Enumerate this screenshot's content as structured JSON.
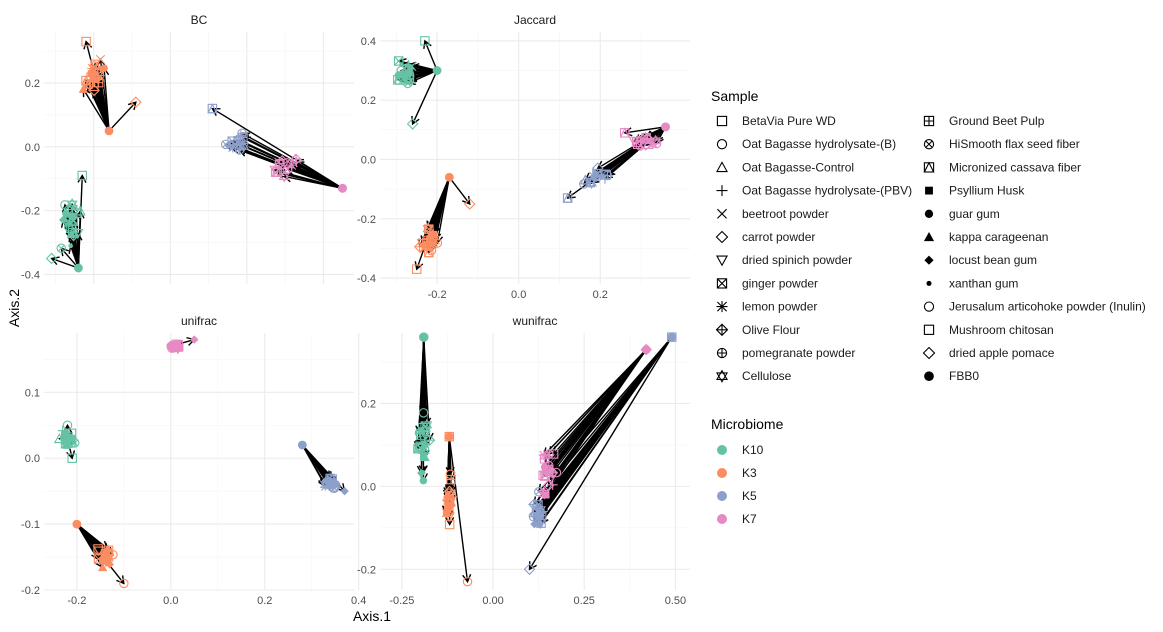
{
  "figure": {
    "xlabel": "Axis.1",
    "ylabel": "Axis.2"
  },
  "legend": {
    "sample_title": "Sample",
    "samples": [
      {
        "label": "BetaVia Pure WD",
        "shape": "square-open"
      },
      {
        "label": "Oat Bagasse hydrolysate-(B)",
        "shape": "circle-open"
      },
      {
        "label": "Oat Bagasse-Control",
        "shape": "triangle-open"
      },
      {
        "label": "Oat Bagasse hydrolysate-(PBV)",
        "shape": "plus"
      },
      {
        "label": "beetroot powder",
        "shape": "cross"
      },
      {
        "label": "carrot powder",
        "shape": "diamond-open"
      },
      {
        "label": "dried spinich powder",
        "shape": "triangle-down-open"
      },
      {
        "label": "ginger powder",
        "shape": "square-cross"
      },
      {
        "label": "lemon powder",
        "shape": "asterisk"
      },
      {
        "label": "Olive Flour",
        "shape": "diamond-plus"
      },
      {
        "label": "pomegranate powder",
        "shape": "circle-plus"
      },
      {
        "label": "Cellulose",
        "shape": "star-of-david"
      },
      {
        "label": "Ground Beet Pulp",
        "shape": "square-plus"
      },
      {
        "label": "HiSmooth flax seed fiber",
        "shape": "circle-cross"
      },
      {
        "label": "Micronized cassava fiber",
        "shape": "square-triangle"
      },
      {
        "label": "Psyllium Husk",
        "shape": "square-filled"
      },
      {
        "label": "guar gum",
        "shape": "circle-filled"
      },
      {
        "label": "kappa carageenan",
        "shape": "triangle-filled"
      },
      {
        "label": "locust bean gum",
        "shape": "diamond-filled"
      },
      {
        "label": "xanthan gum",
        "shape": "dot-small"
      },
      {
        "label": "Jerusalum articohoke powder (Inulin)",
        "shape": "circle-open"
      },
      {
        "label": "Mushroom chitosan",
        "shape": "square-open"
      },
      {
        "label": "dried apple pomace",
        "shape": "diamond-open"
      },
      {
        "label": "FBB0",
        "shape": "circle-filled-large"
      }
    ],
    "microbiome_title": "Microbiome",
    "microbiomes": [
      {
        "label": "K10",
        "color": "#66c2a5"
      },
      {
        "label": "K3",
        "color": "#fc8d62"
      },
      {
        "label": "K5",
        "color": "#8da0cb"
      },
      {
        "label": "K7",
        "color": "#e78ac3"
      }
    ]
  },
  "chart_data": [
    {
      "type": "scatter",
      "title": "BC",
      "xlim": [
        -0.33,
        0.48
      ],
      "ylim": [
        -0.43,
        0.36
      ],
      "x_ticks": [
        -0.2,
        0.0,
        0.2,
        0.4
      ],
      "x_tick_labels": [
        "",
        "",
        "",
        ""
      ],
      "y_ticks": [
        -0.4,
        -0.2,
        0.0,
        0.2
      ],
      "y_tick_labels": [
        "-0.4",
        "-0.2",
        "0.0",
        "0.2"
      ],
      "origins": {
        "K3": [
          -0.16,
          0.05
        ],
        "K10": [
          -0.24,
          -0.38
        ],
        "K5": [
          0.45,
          -0.13
        ],
        "K7": [
          0.45,
          -0.13
        ]
      },
      "groups": [
        {
          "microbiome": "K3",
          "center": [
            -0.2,
            0.22
          ],
          "spread": [
            0.035,
            0.09
          ],
          "count": 22,
          "extra": [
            [
              -0.09,
              0.14
            ],
            [
              -0.22,
              0.33
            ]
          ]
        },
        {
          "microbiome": "K10",
          "center": [
            -0.26,
            -0.24
          ],
          "spread": [
            0.03,
            0.09
          ],
          "count": 22,
          "extra": [
            [
              -0.31,
              -0.35
            ],
            [
              -0.23,
              -0.09
            ]
          ]
        },
        {
          "microbiome": "K5",
          "center": [
            0.17,
            0.01
          ],
          "spread": [
            0.05,
            0.04
          ],
          "count": 14,
          "extra": [
            [
              0.11,
              0.12
            ]
          ]
        },
        {
          "microbiome": "K7",
          "center": [
            0.3,
            -0.06
          ],
          "spread": [
            0.05,
            0.04
          ],
          "count": 14,
          "extra": []
        }
      ]
    },
    {
      "type": "scatter",
      "title": "Jaccard",
      "xlim": [
        -0.34,
        0.42
      ],
      "ylim": [
        -0.42,
        0.43
      ],
      "x_ticks": [
        -0.2,
        0.0,
        0.2
      ],
      "x_tick_labels": [
        "-0.2",
        "0.0",
        "0.2"
      ],
      "y_ticks": [
        -0.4,
        -0.2,
        0.0,
        0.2,
        0.4
      ],
      "y_tick_labels": [
        "-0.4",
        "-0.2",
        "0.0",
        "0.2",
        "0.4"
      ],
      "origins": {
        "K10": [
          -0.2,
          0.3
        ],
        "K3": [
          -0.17,
          -0.06
        ],
        "K5": [
          0.36,
          0.11
        ],
        "K7": [
          0.36,
          0.11
        ]
      },
      "groups": [
        {
          "microbiome": "K10",
          "center": [
            -0.28,
            0.29
          ],
          "spread": [
            0.03,
            0.08
          ],
          "count": 22,
          "extra": [
            [
              -0.26,
              0.12
            ],
            [
              -0.23,
              0.4
            ]
          ]
        },
        {
          "microbiome": "K3",
          "center": [
            -0.22,
            -0.28
          ],
          "spread": [
            0.03,
            0.07
          ],
          "count": 22,
          "extra": [
            [
              -0.12,
              -0.15
            ],
            [
              -0.25,
              -0.37
            ]
          ]
        },
        {
          "microbiome": "K5",
          "center": [
            0.19,
            -0.06
          ],
          "spread": [
            0.05,
            0.04
          ],
          "count": 14,
          "extra": [
            [
              0.12,
              -0.13
            ]
          ]
        },
        {
          "microbiome": "K7",
          "center": [
            0.32,
            0.06
          ],
          "spread": [
            0.05,
            0.025
          ],
          "count": 14,
          "extra": [
            [
              0.26,
              0.09
            ]
          ]
        }
      ]
    },
    {
      "type": "scatter",
      "title": "unifrac",
      "xlim": [
        -0.27,
        0.39
      ],
      "ylim": [
        -0.2,
        0.19
      ],
      "x_ticks": [
        -0.2,
        0.0,
        0.2,
        0.4
      ],
      "x_tick_labels": [
        "-0.2",
        "0.0",
        "0.2",
        "0.4"
      ],
      "y_ticks": [
        -0.2,
        -0.1,
        0.0,
        0.1
      ],
      "y_tick_labels": [
        "-0.2",
        "-0.1",
        "0.0",
        "0.1"
      ],
      "origins": {
        "K10": [
          -0.22,
          0.03
        ],
        "K3": [
          -0.2,
          -0.1
        ],
        "K5": [
          0.28,
          0.02
        ],
        "K7": [
          0.0,
          0.17
        ]
      },
      "groups": [
        {
          "microbiome": "K10",
          "center": [
            -0.22,
            0.03
          ],
          "spread": [
            0.02,
            0.015
          ],
          "count": 20,
          "extra": [
            [
              -0.22,
              0.05
            ],
            [
              -0.21,
              0.0
            ]
          ]
        },
        {
          "microbiome": "K3",
          "center": [
            -0.14,
            -0.15
          ],
          "spread": [
            0.025,
            0.02
          ],
          "count": 20,
          "extra": [
            [
              -0.1,
              -0.19
            ]
          ]
        },
        {
          "microbiome": "K5",
          "center": [
            0.34,
            -0.04
          ],
          "spread": [
            0.02,
            0.015
          ],
          "count": 18,
          "extra": [
            [
              0.37,
              -0.05
            ]
          ]
        },
        {
          "microbiome": "K7",
          "center": [
            0.01,
            0.17
          ],
          "spread": [
            0.015,
            0.006
          ],
          "count": 18,
          "extra": [
            [
              0.05,
              0.18
            ]
          ]
        }
      ]
    },
    {
      "type": "scatter",
      "title": "wunifrac",
      "xlim": [
        -0.31,
        0.54
      ],
      "ylim": [
        -0.25,
        0.37
      ],
      "x_ticks": [
        -0.25,
        0.0,
        0.25,
        0.5
      ],
      "x_tick_labels": [
        "-0.25",
        "0.00",
        "0.25",
        "0.50"
      ],
      "y_ticks": [
        -0.2,
        0.0,
        0.2
      ],
      "y_tick_labels": [
        "-0.2",
        "0.0",
        "0.2"
      ],
      "origins": {
        "K10": [
          -0.19,
          0.36
        ],
        "K3": [
          -0.12,
          0.12
        ],
        "K5": [
          0.49,
          0.36
        ],
        "K7": [
          0.42,
          0.33
        ]
      },
      "groups": [
        {
          "microbiome": "K10",
          "center": [
            -0.19,
            0.1
          ],
          "spread": [
            0.02,
            0.13
          ],
          "count": 24,
          "extra": [
            [
              -0.19,
              0.36
            ]
          ]
        },
        {
          "microbiome": "K3",
          "center": [
            -0.12,
            -0.04
          ],
          "spread": [
            0.015,
            0.08
          ],
          "count": 20,
          "extra": [
            [
              -0.07,
              -0.23
            ],
            [
              -0.12,
              0.12
            ]
          ]
        },
        {
          "microbiome": "K5",
          "center": [
            0.12,
            -0.07
          ],
          "spread": [
            0.02,
            0.07
          ],
          "count": 22,
          "extra": [
            [
              0.1,
              -0.2
            ],
            [
              0.49,
              0.36
            ]
          ]
        },
        {
          "microbiome": "K7",
          "center": [
            0.15,
            0.03
          ],
          "spread": [
            0.03,
            0.08
          ],
          "count": 22,
          "extra": [
            [
              0.42,
              0.33
            ]
          ]
        }
      ]
    }
  ]
}
